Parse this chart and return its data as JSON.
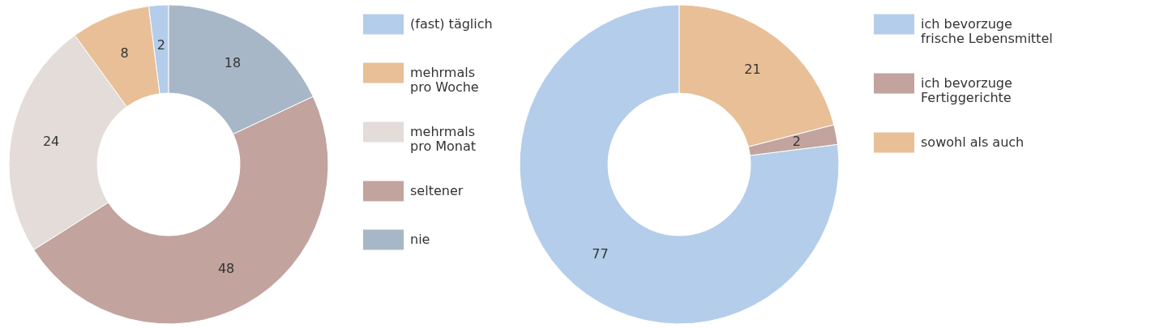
{
  "chart_data": [
    {
      "type": "donut",
      "categories": [
        "(fast) täglich",
        "mehrmals\npro Woche",
        "mehrmals\npro Monat",
        "seltener",
        "nie"
      ],
      "values": [
        2,
        8,
        24,
        48,
        18
      ],
      "colors": [
        "#b3cdea",
        "#e8bf96",
        "#e3dcd9",
        "#c2a39e",
        "#a7b7c7"
      ],
      "data_labels": true,
      "legend": "right"
    },
    {
      "type": "donut",
      "categories": [
        "ich bevorzuge\nfrische Lebensmittel",
        "ich bevorzuge\nFertiggerichte",
        "sowohl als auch"
      ],
      "values": [
        77,
        2,
        21
      ],
      "colors": [
        "#b3cdea",
        "#c2a39e",
        "#e8bf96"
      ],
      "data_labels": true,
      "legend": "right"
    }
  ]
}
